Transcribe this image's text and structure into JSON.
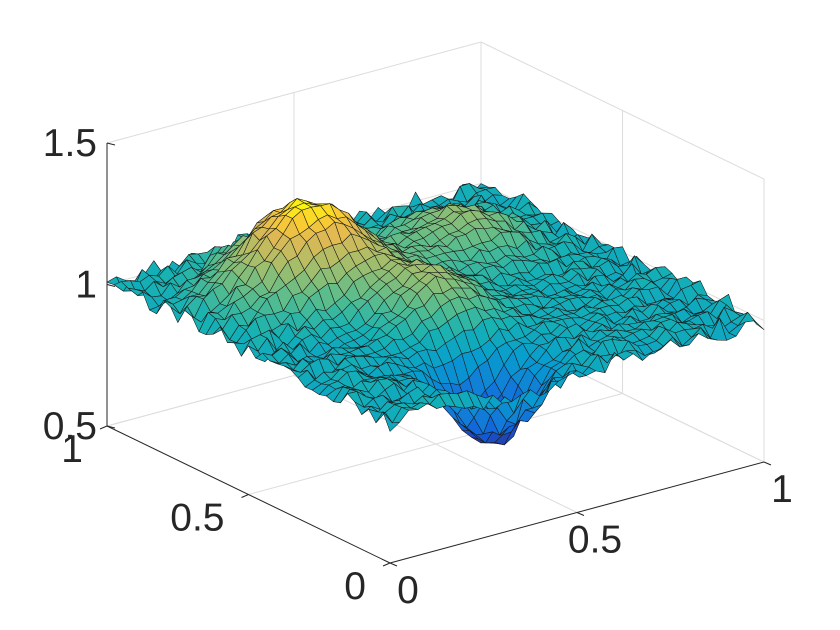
{
  "chart_data": {
    "type": "surface",
    "title": "",
    "xlabel": "",
    "ylabel": "",
    "zlabel": "",
    "grid": true,
    "colormap": "parula",
    "edge_color": "#1a1a1a",
    "xlim": [
      0,
      1
    ],
    "ylim": [
      0,
      1
    ],
    "zlim": [
      0.5,
      1.5
    ],
    "x_ticks": [
      {
        "value": 0,
        "label": "0"
      },
      {
        "value": 0.5,
        "label": "0.5"
      },
      {
        "value": 1,
        "label": "1"
      }
    ],
    "y_ticks": [
      {
        "value": 0,
        "label": "0"
      },
      {
        "value": 0.5,
        "label": "0.5"
      },
      {
        "value": 1,
        "label": "1"
      }
    ],
    "z_ticks": [
      {
        "value": 0.5,
        "label": "0.5"
      },
      {
        "value": 1,
        "label": "1"
      },
      {
        "value": 1.5,
        "label": "1.5"
      }
    ],
    "mesh_resolution": 41,
    "baseline": 1.0,
    "noise_amplitude": 0.025,
    "features": [
      {
        "kind": "peak",
        "x": 0.3,
        "y": 0.68,
        "amplitude": 0.36,
        "width": 0.13
      },
      {
        "kind": "peak",
        "x": 0.72,
        "y": 0.7,
        "amplitude": 0.15,
        "width": 0.11
      },
      {
        "kind": "peak",
        "x": 0.44,
        "y": 0.42,
        "amplitude": 0.15,
        "width": 0.09
      },
      {
        "kind": "dip",
        "x": 0.38,
        "y": 0.15,
        "amplitude": 0.3,
        "width": 0.08
      },
      {
        "kind": "dip",
        "x": 0.25,
        "y": 0.55,
        "amplitude": 0.09,
        "width": 0.11
      }
    ]
  }
}
